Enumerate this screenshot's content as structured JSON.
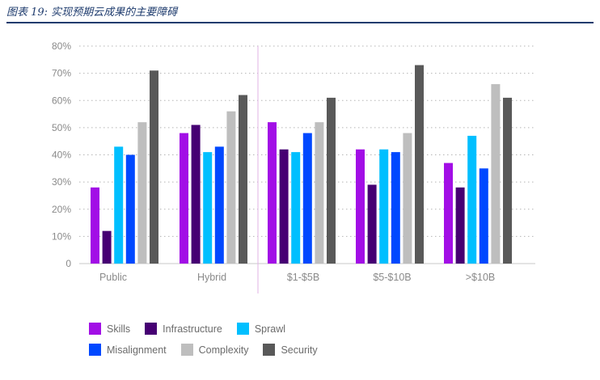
{
  "caption": "图表 19: 实现预期云成果的主要障碍",
  "colors": {
    "caption": "#1f3c6e",
    "grid": "#b5b5b5",
    "divider": "#e0b3e6",
    "axis": "#c8c8c8"
  },
  "chart_data": {
    "type": "bar",
    "categories": [
      "Public",
      "Hybrid",
      "$1-$5B",
      "$5-$10B",
      ">$10B"
    ],
    "y_ticks": [
      "0",
      "10%",
      "20%",
      "30%",
      "40%",
      "50%",
      "60%",
      "70%",
      "80%"
    ],
    "ylim": [
      0,
      80
    ],
    "grid": "dotted horizontal",
    "legend_position": "bottom-left",
    "series": [
      {
        "name": "Skills",
        "color": "#a20ee6",
        "values": [
          28,
          48,
          52,
          42,
          37
        ]
      },
      {
        "name": "Infrastructure",
        "color": "#460073",
        "values": [
          12,
          51,
          42,
          29,
          28
        ]
      },
      {
        "name": "Sprawl",
        "color": "#00bfff",
        "values": [
          43,
          41,
          41,
          42,
          47
        ]
      },
      {
        "name": "Misalignment",
        "color": "#0048ff",
        "values": [
          40,
          43,
          48,
          41,
          35
        ]
      },
      {
        "name": "Complexity",
        "color": "#bebebe",
        "values": [
          52,
          56,
          52,
          48,
          66
        ]
      },
      {
        "name": "Security",
        "color": "#595959",
        "values": [
          71,
          62,
          61,
          73,
          61
        ]
      }
    ]
  }
}
